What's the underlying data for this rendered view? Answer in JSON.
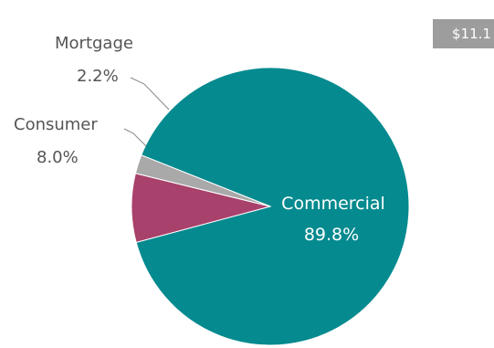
{
  "badge": {
    "text": "$11.1"
  },
  "chart_data": {
    "type": "pie",
    "title": "",
    "categories": [
      "Commercial",
      "Consumer",
      "Mortgage"
    ],
    "values": [
      89.8,
      8.0,
      2.2
    ],
    "value_labels": [
      "89.8%",
      "8.0%",
      "2.2%"
    ],
    "unit": "%",
    "colors": {
      "Commercial": "#048a8f",
      "Consumer": "#a8416b",
      "Mortgage": "#a9a9a9"
    },
    "label_color_outside": "#555555",
    "label_color_inside": "#ffffff",
    "legend": "none",
    "start_angle_deg": 201.7,
    "direction": "clockwise"
  }
}
